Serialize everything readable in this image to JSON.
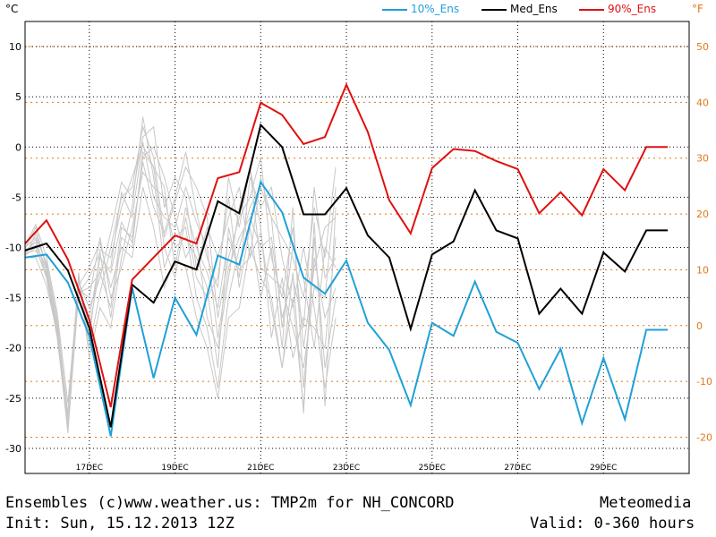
{
  "header": {
    "left_unit": "°C",
    "right_unit": "°F",
    "legend": [
      {
        "label": "10%_Ens",
        "color": "#1fa0d8"
      },
      {
        "label": "Med_Ens",
        "color": "#000000"
      },
      {
        "label": "90%_Ens",
        "color": "#e01010"
      }
    ]
  },
  "footer": {
    "line1_left": "Ensembles (c)www.weather.us: TMP2m for NH_CONCORD",
    "line1_right": "Meteomedia",
    "line2_left": "Init: Sun, 15.12.2013 12Z",
    "line2_right": "Valid: 0-360 hours"
  },
  "colors": {
    "ens_member": "#c8c8c8",
    "p10": "#1fa0d8",
    "median": "#000000",
    "p90": "#e01010",
    "fahrenheit_axis": "#e07818",
    "grid_f": "#e07818"
  },
  "chart_data": {
    "type": "line",
    "x_unit": "forecast hours since init",
    "xlim": [
      0,
      372
    ],
    "ylim": [
      -32.5,
      12.5
    ],
    "yticks_c": [
      10,
      5,
      0,
      -5,
      -10,
      -15,
      -20,
      -25,
      -30
    ],
    "yticks_f": [
      50,
      40,
      30,
      20,
      10,
      0,
      -10,
      -20
    ],
    "xticks": [
      {
        "x": 36,
        "label": "17DEC"
      },
      {
        "x": 84,
        "label": "19DEC"
      },
      {
        "x": 132,
        "label": "21DEC"
      },
      {
        "x": 180,
        "label": "23DEC"
      },
      {
        "x": 228,
        "label": "25DEC"
      },
      {
        "x": 276,
        "label": "27DEC"
      },
      {
        "x": 324,
        "label": "29DEC"
      }
    ],
    "x": [
      0,
      6,
      12,
      18,
      24,
      30,
      36,
      42,
      48,
      54,
      60,
      66,
      72,
      78,
      84,
      90,
      96,
      102,
      108,
      114,
      120,
      126,
      132,
      138,
      144,
      150,
      156,
      162,
      168,
      174,
      180,
      186,
      192,
      198,
      204,
      210,
      216,
      222,
      228,
      234,
      240,
      246,
      252,
      258,
      264,
      270,
      276,
      282,
      288,
      294,
      300,
      306,
      312,
      318,
      324,
      330,
      336,
      342,
      348,
      354,
      360
    ],
    "series": [
      {
        "name": "10%_Ens",
        "key": "p10",
        "x": [
          0,
          12,
          24,
          36,
          48,
          60,
          72,
          84,
          96,
          108,
          120,
          132,
          144,
          156,
          168,
          180,
          192,
          204,
          216,
          228,
          240,
          252,
          264,
          276,
          288,
          300,
          312,
          324,
          336,
          348,
          360
        ],
        "values": [
          -11,
          -10.7,
          -13.5,
          -18.8,
          -28.8,
          -14,
          -23,
          -15,
          -18.7,
          -10.8,
          -11.7,
          -3.5,
          -6.5,
          -13,
          -14.6,
          -11.3,
          -17.5,
          -20.2,
          -25.7,
          -17.5,
          -18.8,
          -13.4,
          -18.4,
          -19.5,
          -24.1,
          -20.1,
          -27.5,
          -21,
          -27.1,
          -18.2,
          -18.2
        ]
      },
      {
        "name": "Med_Ens",
        "key": "median",
        "x": [
          0,
          12,
          24,
          36,
          48,
          60,
          72,
          84,
          96,
          108,
          120,
          132,
          144,
          156,
          168,
          180,
          192,
          204,
          216,
          228,
          240,
          252,
          264,
          276,
          288,
          300,
          312,
          324,
          336,
          348,
          360
        ],
        "values": [
          -10.3,
          -9.6,
          -12.3,
          -18,
          -27.9,
          -13.7,
          -15.5,
          -11.4,
          -12.2,
          -5.4,
          -6.6,
          2.2,
          0,
          -6.7,
          -6.7,
          -4.1,
          -8.8,
          -11,
          -18.1,
          -10.7,
          -9.4,
          -4.3,
          -8.3,
          -9.1,
          -16.6,
          -14.1,
          -16.6,
          -10.5,
          -12.4,
          -8.3,
          -8.3
        ]
      },
      {
        "name": "90%_Ens",
        "key": "p90",
        "x": [
          0,
          12,
          24,
          36,
          48,
          60,
          72,
          84,
          96,
          108,
          120,
          132,
          144,
          156,
          168,
          180,
          192,
          204,
          216,
          228,
          240,
          252,
          264,
          276,
          288,
          300,
          312,
          324,
          336,
          348,
          360
        ],
        "values": [
          -9.6,
          -7.3,
          -11.2,
          -17.2,
          -25.9,
          -13.2,
          -11,
          -8.8,
          -9.6,
          -3.1,
          -2.5,
          4.4,
          3.2,
          0.3,
          1,
          6.2,
          1.5,
          -5.3,
          -8.6,
          -2.1,
          -0.2,
          -0.4,
          -1.4,
          -2.2,
          -6.6,
          -4.5,
          -6.8,
          -2.2,
          -4.3,
          0,
          0
        ]
      }
    ],
    "ensemble_members": [
      [
        -10.1,
        -8,
        -12,
        -17.5,
        -26.5,
        -13,
        -19.1,
        -10.2,
        -11,
        -6,
        -3,
        0.2,
        -2,
        -4,
        -12,
        -6,
        -10,
        -12.5,
        -16,
        -9,
        -12.2,
        -11,
        -8.5,
        -16,
        -22,
        -12.5,
        -26.5,
        -7.5,
        -25.8,
        -6
      ],
      [
        -10.5,
        -9.2,
        -12.8,
        -18.5,
        -27.3,
        -14.5,
        -14,
        -12.5,
        -16,
        -8,
        -9,
        -1.5,
        -6,
        -8.5,
        -5,
        -0.5,
        -6.5,
        -11,
        -14,
        -3,
        -8,
        -2,
        -12,
        -13,
        -14,
        -18,
        -22,
        -14,
        -15,
        -4
      ],
      [
        -10.8,
        -10,
        -13,
        -19,
        -28,
        -12.5,
        -21,
        -16,
        -18,
        -11,
        -6,
        3,
        -3,
        -12,
        -9,
        -8,
        -15,
        -18,
        -24,
        -15,
        -10,
        -6,
        -4,
        -7,
        -18,
        -10,
        -13,
        -20,
        -10,
        -12
      ],
      [
        -10,
        -9,
        -11.5,
        -17,
        -27,
        -14,
        -17,
        -11,
        -12.5,
        -7.5,
        -9.5,
        -1,
        0,
        -3,
        -7,
        -11,
        -9,
        -17,
        -20,
        -13,
        -6,
        -2,
        -8,
        -19,
        -13,
        -21,
        -17,
        -18,
        -20,
        -9
      ],
      [
        -9.8,
        -7.7,
        -11,
        -16.5,
        -25.5,
        -13.5,
        -16,
        -13,
        -8.5,
        -3.5,
        -5,
        1,
        2,
        -6,
        -3,
        -5,
        -12,
        -8,
        -11,
        -7,
        -4,
        -11,
        -3,
        -7,
        -9,
        -11,
        -15,
        -6,
        -11,
        -2
      ],
      [
        -11,
        -11,
        -13.8,
        -18.5,
        -28.5,
        -13.8,
        -12,
        -9.5,
        -14,
        -10,
        -11,
        -4,
        -8,
        -14,
        -11,
        -12,
        -17,
        -20,
        -25,
        -17,
        -16,
        -10,
        -13,
        -15,
        -22,
        -15,
        -26,
        -9,
        -22,
        -15
      ],
      [
        -10.3,
        -9.5,
        -12.2,
        -17.8,
        -27.6,
        -13,
        -20,
        -14.5,
        -10,
        -5,
        -4,
        2,
        -1,
        -9,
        -5.5,
        -2,
        -4,
        -7,
        -17,
        -11,
        -7,
        -5,
        -1,
        -11,
        -15,
        -8,
        -20,
        -12,
        -8,
        -7
      ],
      [
        -10.6,
        -10.3,
        -12.5,
        -18.2,
        -27.9,
        -14.2,
        -15,
        -9,
        -15,
        -12,
        -8,
        -2.5,
        -4,
        -5,
        -10,
        -9,
        -11,
        -14,
        -22,
        -8,
        -13,
        -3,
        -6,
        -4,
        -11,
        -16,
        -10,
        -16,
        -24,
        -17
      ],
      [
        -10.2,
        -9.8,
        -12,
        -17.6,
        -27.2,
        -13.3,
        -18,
        -12,
        -12,
        -4.5,
        -7,
        0.5,
        -5,
        -7,
        -8,
        -4,
        -7.5,
        -10,
        -19,
        -12,
        -9,
        -7,
        -10,
        -9,
        -17,
        -13,
        -18,
        -4,
        -13,
        -11
      ],
      [
        -10.9,
        -8.6,
        -11.8,
        -18.8,
        -28.2,
        -14.6,
        -13,
        -10.5,
        -17,
        -9,
        -10,
        -0.5,
        -2,
        -10,
        -13,
        -7,
        -13,
        -15,
        -13,
        -5,
        -14,
        -8,
        -15,
        -10,
        -20,
        -6,
        -24,
        -11,
        -17,
        -14
      ]
    ]
  }
}
